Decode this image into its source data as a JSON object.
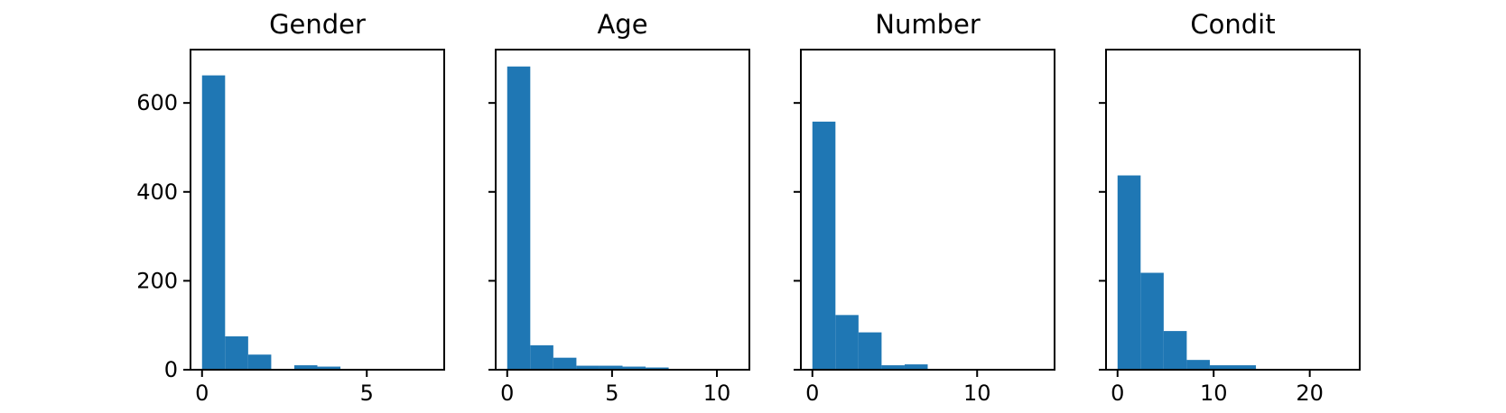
{
  "chart_data": [
    {
      "type": "bar",
      "title": "Gender",
      "xlabel": "",
      "ylabel": "",
      "bin_edges": [
        0,
        0.7,
        1.4,
        2.1,
        2.8,
        3.5,
        4.2,
        4.9,
        5.6,
        6.3,
        7.0
      ],
      "values": [
        662,
        75,
        34,
        0,
        10,
        7,
        0,
        0,
        0,
        0
      ],
      "xlim": [
        -0.35,
        7.35
      ],
      "ylim": [
        0,
        720
      ],
      "xticks": [
        0,
        5
      ],
      "yticks": [
        0,
        200,
        400,
        600
      ],
      "color": "#1f77b4"
    },
    {
      "type": "bar",
      "title": "Age",
      "xlabel": "",
      "ylabel": "",
      "bin_edges": [
        0,
        1.1,
        2.2,
        3.3,
        4.4,
        5.5,
        6.6,
        7.7,
        8.8,
        9.9,
        11.0
      ],
      "values": [
        682,
        55,
        27,
        9,
        9,
        7,
        5,
        0,
        0,
        0
      ],
      "xlim": [
        -0.55,
        11.55
      ],
      "ylim": [
        0,
        720
      ],
      "xticks": [
        0,
        5,
        10
      ],
      "yticks": [
        0,
        200,
        400,
        600
      ],
      "color": "#1f77b4"
    },
    {
      "type": "bar",
      "title": "Number",
      "xlabel": "",
      "ylabel": "",
      "bin_edges": [
        0,
        1.4,
        2.8,
        4.2,
        5.6,
        7.0,
        8.4,
        9.8,
        11.2,
        12.6,
        14.0
      ],
      "values": [
        558,
        123,
        84,
        10,
        12,
        2,
        0,
        0,
        0,
        0
      ],
      "xlim": [
        -0.7,
        14.7
      ],
      "ylim": [
        0,
        720
      ],
      "xticks": [
        0,
        10
      ],
      "yticks": [
        0,
        200,
        400,
        600
      ],
      "color": "#1f77b4"
    },
    {
      "type": "bar",
      "title": "Condit",
      "xlabel": "",
      "ylabel": "",
      "bin_edges": [
        0,
        2.4,
        4.8,
        7.2,
        9.6,
        12.0,
        14.4,
        16.8,
        19.2,
        21.6,
        24.0
      ],
      "values": [
        437,
        218,
        87,
        22,
        10,
        10,
        1,
        1,
        0,
        0
      ],
      "xlim": [
        -1.2,
        25.2
      ],
      "ylim": [
        0,
        720
      ],
      "xticks": [
        0,
        10,
        20
      ],
      "yticks": [
        0,
        200,
        400,
        600
      ],
      "color": "#1f77b4"
    }
  ]
}
